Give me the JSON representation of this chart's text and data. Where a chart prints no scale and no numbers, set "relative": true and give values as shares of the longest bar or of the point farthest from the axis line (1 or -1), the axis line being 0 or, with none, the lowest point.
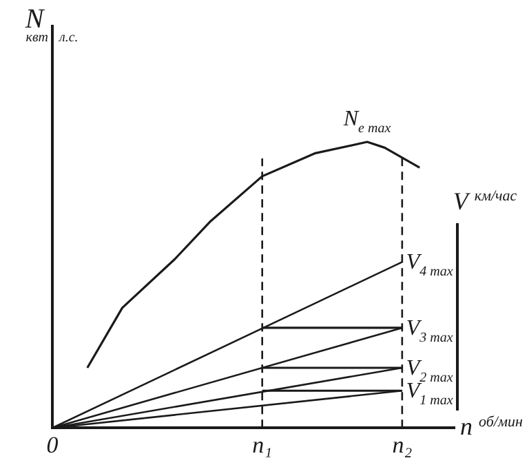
{
  "chart_data": {
    "type": "line",
    "relative": true,
    "ylabel": "N",
    "xlabel": "n $^{об/мин}$",
    "y2label": "V $^{км/час}$",
    "annotations": [
      "квт",
      "л.с.",
      "N$_{e max}$"
    ],
    "categories": [
      "0",
      null,
      null,
      null,
      null,
      null,
      null,
      null,
      null,
      null,
      null,
      null,
      "n₁",
      null,
      null,
      null,
      null,
      null,
      null,
      null,
      "n₂",
      null,
      null,
      null
    ],
    "ref_lines": [
      {
        "axis": "x",
        "value": "n₁",
        "line_style": "dashed",
        "color": "#1a1a1a"
      },
      {
        "axis": "x",
        "value": "n₂",
        "line_style": "dashed",
        "color": "#1a1a1a"
      }
    ],
    "grid": false,
    "legend": false,
    "marker": "none",
    "line_style": "solid",
    "series": [
      {
        "color": "#1a1a1a",
        "values": [
          null,
          null,
          0.21,
          null,
          0.42,
          null,
          null,
          0.59,
          null,
          0.72,
          null,
          null,
          0.88,
          null,
          null,
          0.96,
          null,
          null,
          1.0,
          0.98,
          null,
          0.91,
          null,
          null
        ]
      },
      {
        "name": "V$_{4 max}$",
        "color": "#1a1a1a",
        "values": [
          0,
          null,
          null,
          null,
          null,
          null,
          null,
          null,
          null,
          null,
          null,
          null,
          null,
          null,
          null,
          null,
          null,
          null,
          null,
          null,
          0.58,
          null,
          null,
          null
        ]
      },
      {
        "name": "V$_{3 max}$",
        "color": "#1a1a1a",
        "values": [
          0,
          null,
          null,
          null,
          null,
          null,
          null,
          null,
          null,
          null,
          null,
          null,
          null,
          null,
          null,
          null,
          null,
          null,
          null,
          null,
          0.35,
          null,
          null,
          null
        ]
      },
      {
        "name": "V$_{2 max}$",
        "color": "#1a1a1a",
        "values": [
          0,
          null,
          null,
          null,
          null,
          null,
          null,
          null,
          null,
          null,
          null,
          null,
          null,
          null,
          null,
          null,
          null,
          null,
          null,
          null,
          0.21,
          null,
          null,
          null
        ]
      },
      {
        "name": "V$_{1 max}$",
        "color": "#1a1a1a",
        "values": [
          0,
          null,
          null,
          null,
          null,
          null,
          null,
          null,
          null,
          null,
          null,
          null,
          null,
          null,
          null,
          null,
          null,
          null,
          null,
          null,
          0.13,
          null,
          null,
          null
        ]
      },
      {
        "color": "#1a1a1a",
        "values": [
          null,
          null,
          null,
          null,
          null,
          null,
          null,
          null,
          null,
          null,
          null,
          null,
          0.35,
          null,
          null,
          null,
          null,
          null,
          null,
          null,
          0.35,
          null,
          null,
          null
        ]
      },
      {
        "color": "#1a1a1a",
        "values": [
          null,
          null,
          null,
          null,
          null,
          null,
          null,
          null,
          null,
          null,
          null,
          null,
          0.21,
          null,
          null,
          null,
          null,
          null,
          null,
          null,
          0.21,
          null,
          null,
          null
        ]
      },
      {
        "color": "#1a1a1a",
        "values": [
          null,
          null,
          null,
          null,
          null,
          null,
          null,
          null,
          null,
          null,
          null,
          null,
          0.13,
          null,
          null,
          null,
          null,
          null,
          null,
          null,
          0.13,
          null,
          null,
          null
        ]
      }
    ]
  }
}
